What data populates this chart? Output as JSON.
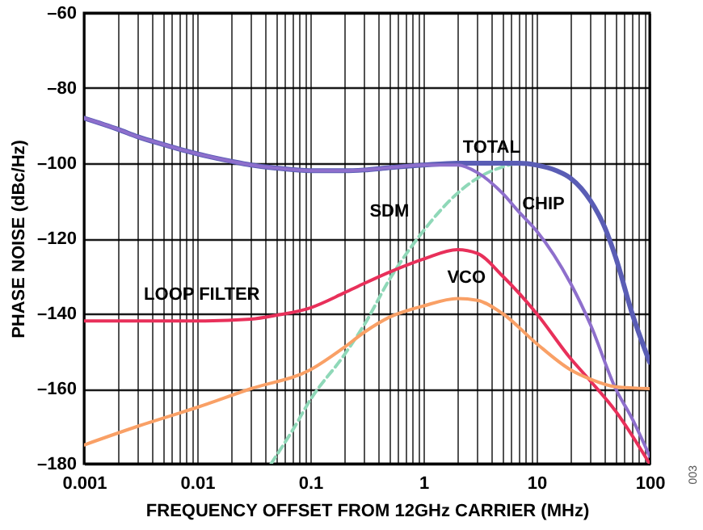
{
  "chart_data": {
    "type": "line",
    "xlabel": "FREQUENCY OFFSET FROM 12GHz CARRIER (MHz)",
    "ylabel": "PHASE NOISE (dBc/Hz)",
    "log": "x",
    "grid": true,
    "legend": false,
    "xlim": [
      0.001,
      100
    ],
    "xticks": [
      0.001,
      {
        "value": 0.002,
        "label": null
      },
      {
        "value": 0.003,
        "label": null
      },
      {
        "value": 0.004,
        "label": null
      },
      {
        "value": 0.005,
        "label": null
      },
      {
        "value": 0.006,
        "label": null
      },
      {
        "value": 0.007,
        "label": null
      },
      {
        "value": 0.008,
        "label": null
      },
      {
        "value": 0.009,
        "label": null
      },
      0.01,
      {
        "value": 0.02,
        "label": null
      },
      {
        "value": 0.03,
        "label": null
      },
      {
        "value": 0.04,
        "label": null
      },
      {
        "value": 0.05,
        "label": null
      },
      {
        "value": 0.06,
        "label": null
      },
      {
        "value": 0.07,
        "label": null
      },
      {
        "value": 0.08,
        "label": null
      },
      {
        "value": 0.09,
        "label": null
      },
      0.1,
      {
        "value": 0.2,
        "label": null
      },
      {
        "value": 0.3,
        "label": null
      },
      {
        "value": 0.4,
        "label": null
      },
      {
        "value": 0.5,
        "label": null
      },
      {
        "value": 0.6,
        "label": null
      },
      {
        "value": 0.7,
        "label": null
      },
      {
        "value": 0.8,
        "label": null
      },
      {
        "value": 0.9,
        "label": null
      },
      1,
      {
        "value": 2,
        "label": null
      },
      {
        "value": 3,
        "label": null
      },
      {
        "value": 4,
        "label": null
      },
      {
        "value": 5,
        "label": null
      },
      {
        "value": 6,
        "label": null
      },
      {
        "value": 7,
        "label": null
      },
      {
        "value": 8,
        "label": null
      },
      {
        "value": 9,
        "label": null
      },
      10,
      {
        "value": 20,
        "label": null
      },
      {
        "value": 30,
        "label": null
      },
      {
        "value": 40,
        "label": null
      },
      {
        "value": 50,
        "label": null
      },
      {
        "value": 60,
        "label": null
      },
      {
        "value": 70,
        "label": null
      },
      {
        "value": 80,
        "label": null
      },
      {
        "value": 90,
        "label": null
      },
      100
    ],
    "ylim": [
      -180,
      -60
    ],
    "yticks": [
      {
        "value": -180,
        "label": "–180"
      },
      {
        "value": -160,
        "label": "–160"
      },
      {
        "value": -140,
        "label": "–140"
      },
      {
        "value": -120,
        "label": "–120"
      },
      {
        "value": -100,
        "label": "–100"
      },
      {
        "value": -80,
        "label": "–80"
      },
      {
        "value": -60,
        "label": "–60"
      }
    ],
    "annotations": [
      "003"
    ],
    "series": [
      {
        "name": "SDM",
        "color": "#8fd8b8",
        "line_style": "dashed",
        "x": [
          0.045,
          0.07,
          0.1,
          0.2,
          0.3,
          0.5,
          1,
          2,
          3,
          5,
          7,
          10,
          15,
          20,
          30,
          40,
          50,
          70,
          100
        ],
        "values": [
          -180,
          -171,
          -163,
          -151,
          -143,
          -131,
          -118,
          -108,
          -104,
          -101,
          -100,
          -100.5,
          -102,
          -104,
          -110,
          -117,
          -125,
          -140,
          -153
        ]
      },
      {
        "name": "TOTAL",
        "color": "#5a5db5",
        "x": [
          0.001,
          0.002,
          0.003,
          0.005,
          0.01,
          0.02,
          0.03,
          0.05,
          0.1,
          0.2,
          0.3,
          0.5,
          1,
          2,
          3,
          5,
          7,
          10,
          15,
          20,
          30,
          40,
          50,
          70,
          100
        ],
        "values": [
          -88,
          -91,
          -93,
          -95,
          -97.5,
          -99.5,
          -100.5,
          -101.3,
          -102,
          -102,
          -101.8,
          -101.2,
          -100.5,
          -100,
          -100,
          -100,
          -100,
          -100.5,
          -102,
          -104,
          -110,
          -117,
          -125,
          -140,
          -153
        ]
      },
      {
        "name": "CHIP",
        "color": "#8e6fcc",
        "x": [
          0.001,
          0.002,
          0.003,
          0.005,
          0.01,
          0.02,
          0.03,
          0.05,
          0.1,
          0.2,
          0.3,
          0.5,
          1,
          2,
          3,
          5,
          7,
          10,
          20,
          30,
          50,
          70,
          100
        ],
        "values": [
          -88,
          -91,
          -93,
          -95,
          -97.5,
          -99.5,
          -100.5,
          -101.3,
          -102,
          -102,
          -101.8,
          -101.2,
          -100.5,
          -100.5,
          -102.5,
          -108,
          -113,
          -118,
          -132,
          -143,
          -160,
          -168,
          -178
        ]
      },
      {
        "name": "LOOP FILTER",
        "color": "#e8305a",
        "x": [
          0.001,
          0.01,
          0.03,
          0.05,
          0.1,
          0.2,
          0.3,
          0.5,
          1,
          2,
          3,
          5,
          10,
          20,
          30,
          50,
          100
        ],
        "values": [
          -142,
          -142,
          -141.5,
          -140.5,
          -138.5,
          -134.5,
          -132,
          -129,
          -125.5,
          -123,
          -124,
          -130,
          -140,
          -152,
          -158,
          -166,
          -180
        ]
      },
      {
        "name": "VCO",
        "color": "#f9a066",
        "x": [
          0.001,
          0.003,
          0.01,
          0.03,
          0.1,
          0.2,
          0.3,
          0.5,
          1,
          2,
          3,
          5,
          10,
          20,
          30,
          50,
          100
        ],
        "values": [
          -175,
          -170,
          -165,
          -160,
          -155,
          -149,
          -145,
          -141,
          -138,
          -136,
          -136.5,
          -140,
          -148,
          -155,
          -157.5,
          -159.5,
          -160
        ]
      }
    ]
  }
}
